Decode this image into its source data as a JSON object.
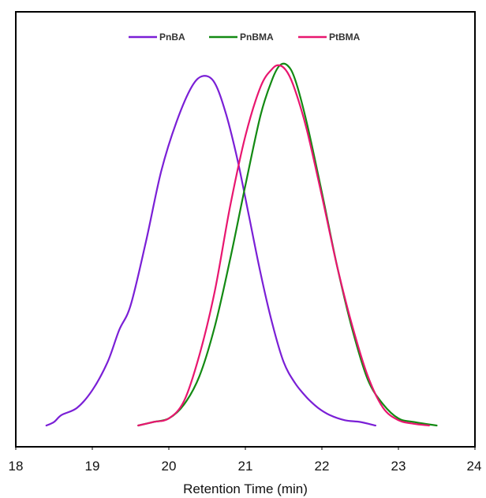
{
  "chart_data": {
    "type": "line",
    "title": "",
    "xlabel": "Retention Time (min)",
    "ylabel": "",
    "xlim": [
      18,
      24
    ],
    "ylim": [
      0,
      1.05
    ],
    "xticks": [
      "18",
      "19",
      "20",
      "21",
      "22",
      "23",
      "24"
    ],
    "grid": false,
    "legend_position": "top-center",
    "series": [
      {
        "name": "PnBA",
        "color": "#7a1fd6",
        "x": [
          18.4,
          18.5,
          18.6,
          18.8,
          19.0,
          19.2,
          19.35,
          19.5,
          19.7,
          19.9,
          20.1,
          20.3,
          20.45,
          20.6,
          20.75,
          20.9,
          21.05,
          21.2,
          21.35,
          21.5,
          21.65,
          21.8,
          21.95,
          22.1,
          22.3,
          22.5,
          22.7
        ],
        "y": [
          0.0,
          0.01,
          0.03,
          0.05,
          0.1,
          0.18,
          0.27,
          0.34,
          0.52,
          0.72,
          0.86,
          0.96,
          0.99,
          0.97,
          0.88,
          0.75,
          0.59,
          0.43,
          0.29,
          0.18,
          0.12,
          0.08,
          0.05,
          0.03,
          0.015,
          0.01,
          0.0
        ]
      },
      {
        "name": "PnBMA",
        "color": "#138a13",
        "x": [
          19.6,
          19.8,
          20.0,
          20.2,
          20.4,
          20.6,
          20.8,
          21.0,
          21.2,
          21.35,
          21.45,
          21.55,
          21.65,
          21.8,
          22.0,
          22.2,
          22.4,
          22.6,
          22.8,
          23.0,
          23.2,
          23.5
        ],
        "y": [
          0.0,
          0.01,
          0.02,
          0.06,
          0.14,
          0.28,
          0.47,
          0.68,
          0.88,
          0.98,
          1.02,
          1.02,
          0.98,
          0.86,
          0.66,
          0.45,
          0.27,
          0.13,
          0.06,
          0.02,
          0.01,
          0.0
        ]
      },
      {
        "name": "PtBMA",
        "color": "#e8166f",
        "x": [
          19.6,
          19.8,
          20.0,
          20.2,
          20.4,
          20.6,
          20.8,
          21.0,
          21.2,
          21.35,
          21.45,
          21.55,
          21.65,
          21.8,
          22.0,
          22.2,
          22.4,
          22.6,
          22.8,
          23.0,
          23.2,
          23.4
        ],
        "y": [
          0.0,
          0.01,
          0.02,
          0.07,
          0.2,
          0.38,
          0.62,
          0.82,
          0.96,
          1.01,
          1.02,
          1.0,
          0.95,
          0.84,
          0.65,
          0.45,
          0.28,
          0.14,
          0.05,
          0.015,
          0.005,
          0.0
        ]
      }
    ]
  }
}
